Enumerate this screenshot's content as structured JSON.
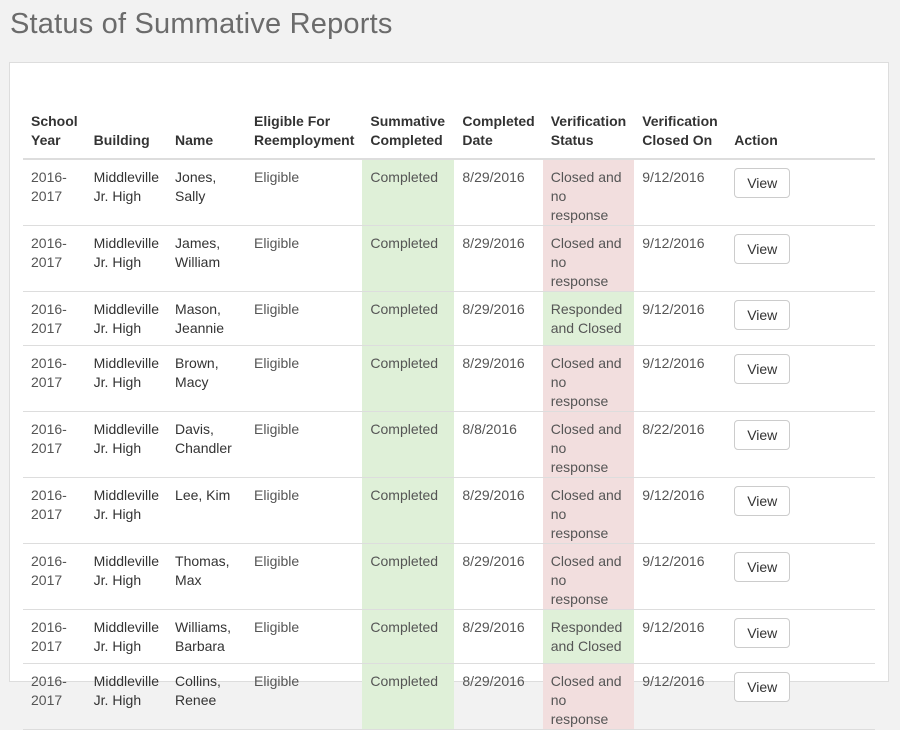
{
  "page": {
    "title": "Status of Summative Reports"
  },
  "table": {
    "headers": [
      "School Year",
      "Building",
      "Name",
      "Eligible For Reemployment",
      "Summative Completed",
      "Completed Date",
      "Verification Status",
      "Verification Closed On",
      "Action"
    ],
    "rows": [
      {
        "year": "2016-2017",
        "building": "Middleville Jr. High",
        "name": "Jones, Sally",
        "eligible": "Eligible",
        "summative": "Completed",
        "completed_date": "8/29/2016",
        "verification": "Closed and no response",
        "verification_status": "warn",
        "closed_on": "9/12/2016",
        "action": "View"
      },
      {
        "year": "2016-2017",
        "building": "Middleville Jr. High",
        "name": "James, William",
        "eligible": "Eligible",
        "summative": "Completed",
        "completed_date": "8/29/2016",
        "verification": "Closed and no response",
        "verification_status": "warn",
        "closed_on": "9/12/2016",
        "action": "View"
      },
      {
        "year": "2016-2017",
        "building": "Middleville Jr. High",
        "name": "Mason, Jeannie",
        "eligible": "Eligible",
        "summative": "Completed",
        "completed_date": "8/29/2016",
        "verification": "Responded and Closed",
        "verification_status": "ok",
        "closed_on": "9/12/2016",
        "action": "View"
      },
      {
        "year": "2016-2017",
        "building": "Middleville Jr. High",
        "name": "Brown, Macy",
        "eligible": "Eligible",
        "summative": "Completed",
        "completed_date": "8/29/2016",
        "verification": "Closed and no response",
        "verification_status": "warn",
        "closed_on": "9/12/2016",
        "action": "View"
      },
      {
        "year": "2016-2017",
        "building": "Middleville Jr. High",
        "name": "Davis, Chandler",
        "eligible": "Eligible",
        "summative": "Completed",
        "completed_date": "8/8/2016",
        "verification": "Closed and no response",
        "verification_status": "warn",
        "closed_on": "8/22/2016",
        "action": "View"
      },
      {
        "year": "2016-2017",
        "building": "Middleville Jr. High",
        "name": "Lee, Kim",
        "eligible": "Eligible",
        "summative": "Completed",
        "completed_date": "8/29/2016",
        "verification": "Closed and no response",
        "verification_status": "warn",
        "closed_on": "9/12/2016",
        "action": "View"
      },
      {
        "year": "2016-2017",
        "building": "Middleville Jr. High",
        "name": "Thomas, Max",
        "eligible": "Eligible",
        "summative": "Completed",
        "completed_date": "8/29/2016",
        "verification": "Closed and no response",
        "verification_status": "warn",
        "closed_on": "9/12/2016",
        "action": "View"
      },
      {
        "year": "2016-2017",
        "building": "Middleville Jr. High",
        "name": "Williams, Barbara",
        "eligible": "Eligible",
        "summative": "Completed",
        "completed_date": "8/29/2016",
        "verification": "Responded and Closed",
        "verification_status": "ok",
        "closed_on": "9/12/2016",
        "action": "View"
      },
      {
        "year": "2016-2017",
        "building": "Middleville Jr. High",
        "name": "Collins, Renee",
        "eligible": "Eligible",
        "summative": "Completed",
        "completed_date": "8/29/2016",
        "verification": "Closed and no response",
        "verification_status": "warn",
        "closed_on": "9/12/2016",
        "action": "View"
      }
    ]
  }
}
